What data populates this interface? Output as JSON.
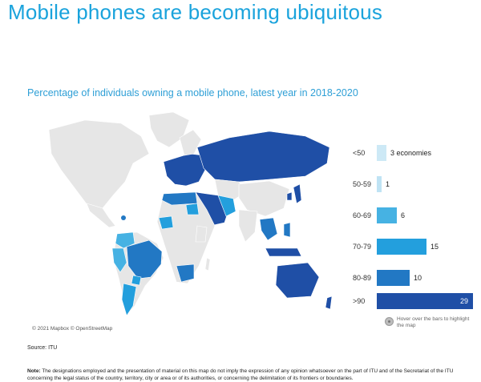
{
  "title": "Mobile phones are becoming ubiquitous",
  "subtitle": "Percentage of individuals owning a mobile phone, latest year in 2018-2020",
  "attribution": "© 2021 Mapbox © OpenStreetMap",
  "source": "Source: ITU",
  "note_label": "Note:",
  "note_text": "The designations employed and the presentation of material on this map do not imply the expression of any opinion whatsoever on the part of ITU and of the Secretariat of the ITU concerning the legal status of the country, territory, city or area or of its authorities, or concerning the delimitation of its frontiers or boundaries.",
  "hover_hint": "Hover over the bars to highlight the map",
  "colors": {
    "title": "#1aa3dc",
    "land_no_data": "#e6e6e6",
    "border": "#ffffff"
  },
  "legend": {
    "categories": [
      "<50",
      "50-59",
      "60-69",
      "70-79",
      "80-89",
      ">90"
    ],
    "counts": [
      3,
      1,
      6,
      15,
      10,
      29
    ],
    "count_labels": [
      "3  economies",
      "1",
      "6",
      "15",
      "10",
      "29"
    ],
    "colors": [
      "#cde9f6",
      "#bfe3f4",
      "#46b2e3",
      "#239fdd",
      "#2278c4",
      "#1f4fa6"
    ]
  }
}
